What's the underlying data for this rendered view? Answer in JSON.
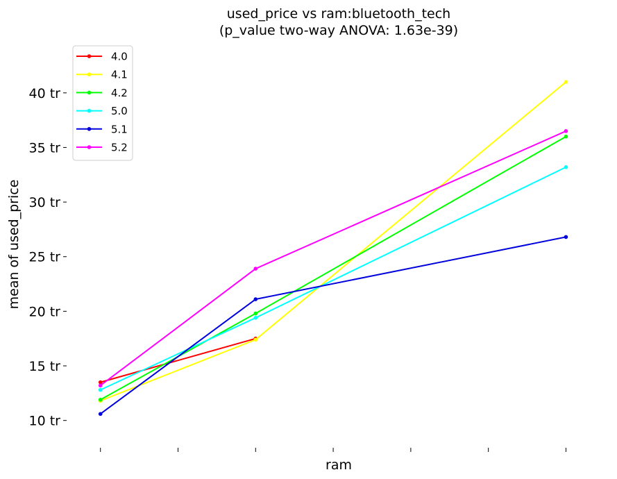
{
  "chart_data": {
    "type": "line",
    "title_line1": "used_price vs ram:bluetooth_tech",
    "title_line2": "(p_value two-way ANOVA: 1.63e-39)",
    "xlabel": "ram",
    "ylabel": "mean of used_price",
    "x_positions": [
      0,
      1,
      2,
      3,
      4,
      5,
      6
    ],
    "xlim": [
      -0.4,
      6.3
    ],
    "ylim": [
      7.5,
      44.5
    ],
    "yticks": [
      {
        "value": 10,
        "label": "10 tr"
      },
      {
        "value": 15,
        "label": "15 tr"
      },
      {
        "value": 20,
        "label": "20 tr"
      },
      {
        "value": 25,
        "label": "25 tr"
      },
      {
        "value": 30,
        "label": "30 tr"
      },
      {
        "value": 35,
        "label": "35 tr"
      },
      {
        "value": 40,
        "label": "40 tr"
      }
    ],
    "grid": false,
    "legend_placement": "top-left",
    "series": [
      {
        "name": "4.0",
        "color": "#ff0000",
        "points": [
          [
            0,
            13.5
          ],
          [
            2,
            17.5
          ]
        ]
      },
      {
        "name": "4.1",
        "color": "#ffff00",
        "points": [
          [
            0,
            11.8
          ],
          [
            2,
            17.4
          ],
          [
            6,
            41.0
          ]
        ]
      },
      {
        "name": "4.2",
        "color": "#00ff00",
        "points": [
          [
            0,
            11.9
          ],
          [
            2,
            19.8
          ],
          [
            6,
            36.0
          ]
        ]
      },
      {
        "name": "5.0",
        "color": "#00ffff",
        "points": [
          [
            0,
            12.8
          ],
          [
            2,
            19.4
          ],
          [
            6,
            33.2
          ]
        ]
      },
      {
        "name": "5.1",
        "color": "#0000dd",
        "points": [
          [
            0,
            10.6
          ],
          [
            2,
            21.1
          ],
          [
            6,
            26.8
          ]
        ]
      },
      {
        "name": "5.2",
        "color": "#ff00ff",
        "points": [
          [
            0,
            13.2
          ],
          [
            2,
            23.9
          ],
          [
            6,
            36.5
          ]
        ]
      }
    ]
  }
}
